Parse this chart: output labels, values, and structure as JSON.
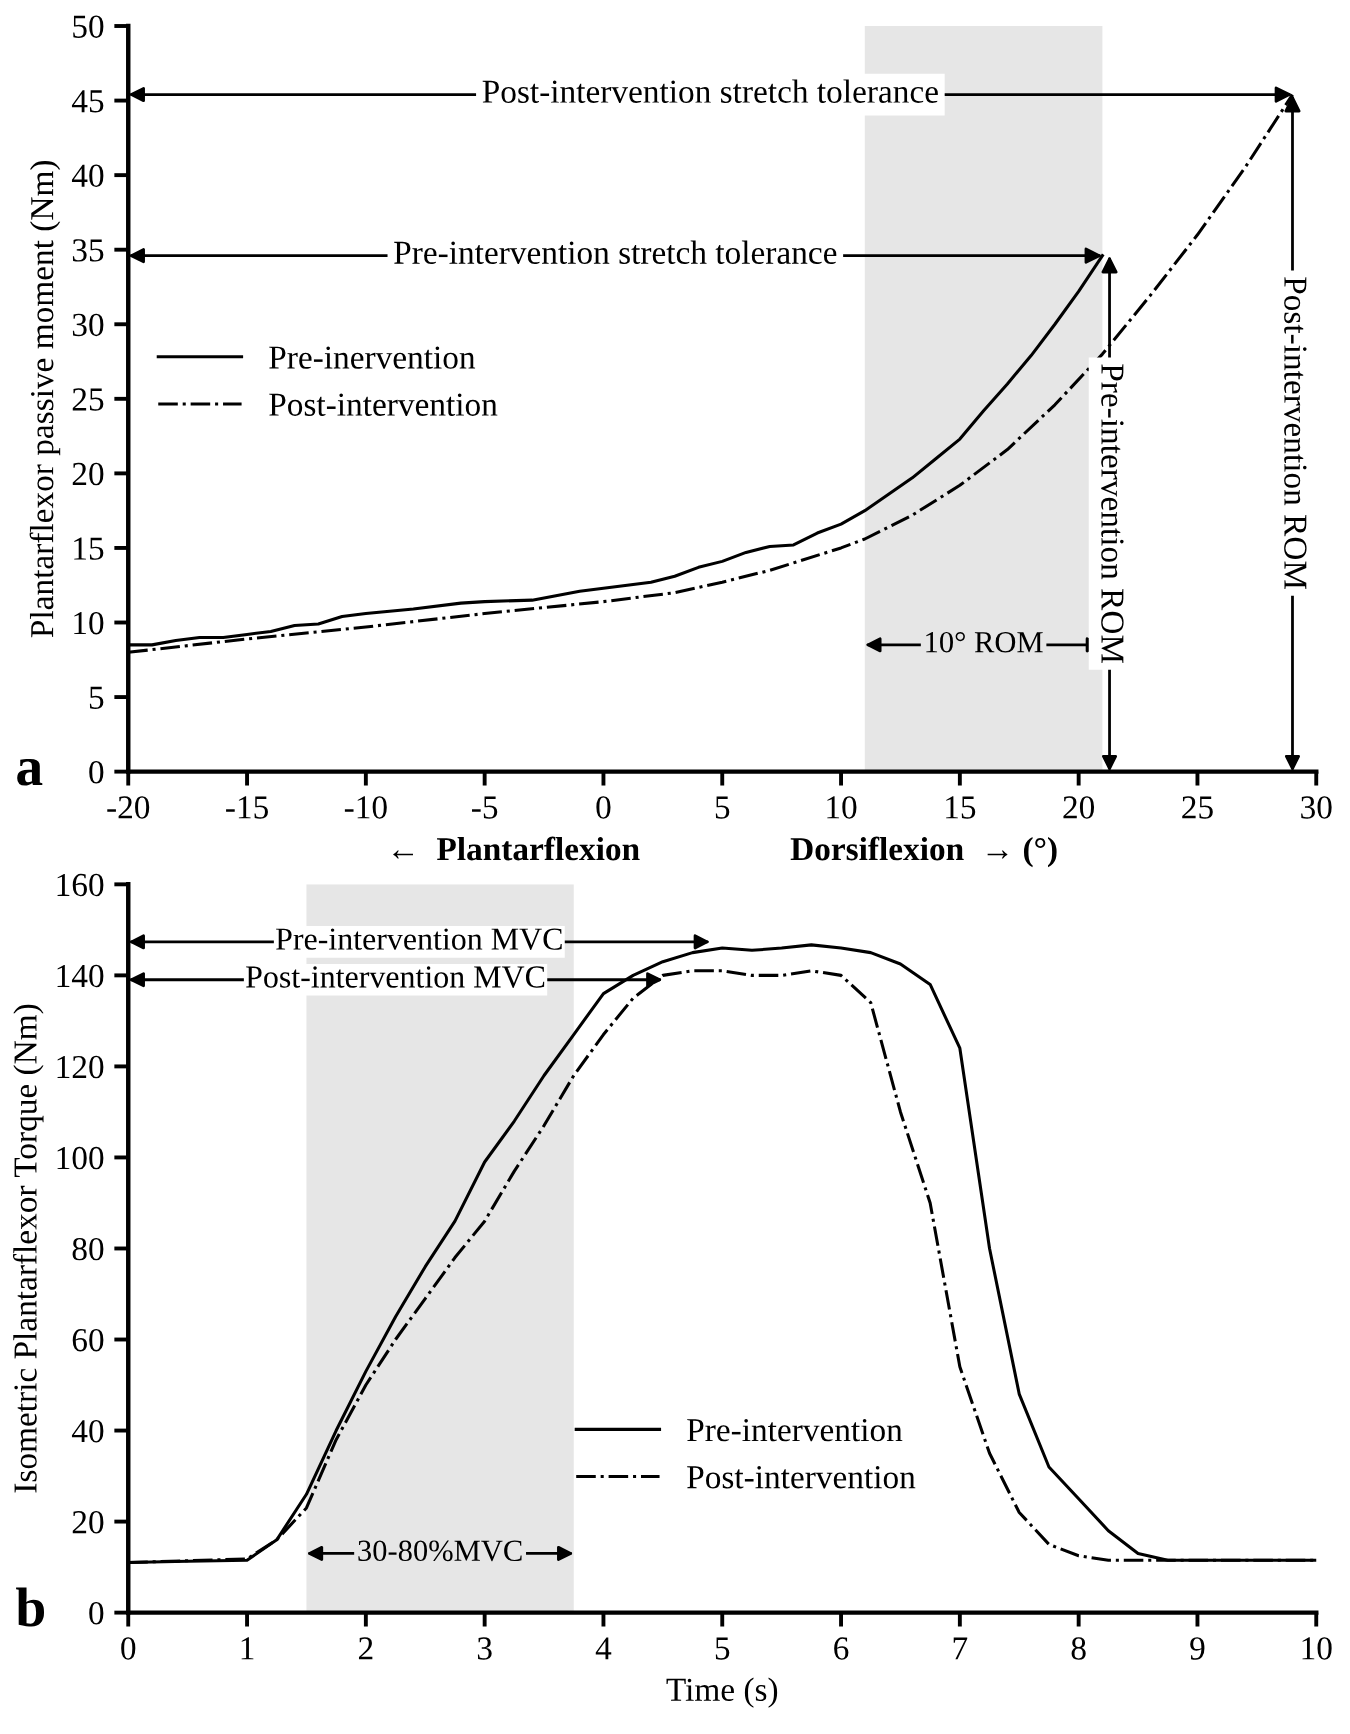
{
  "chart_data": [
    {
      "type": "line",
      "xlabel": "←  Plantarflexion                  Dorsiflexion  → (°)",
      "ylabel": "Plantarflexor passive moment (Nm)",
      "xlim": [
        -20,
        30
      ],
      "xticks": [
        -20,
        -15,
        -10,
        -5,
        0,
        5,
        10,
        15,
        20,
        25,
        30
      ],
      "ylim": [
        0,
        50
      ],
      "yticks": [
        0,
        5,
        10,
        15,
        20,
        25,
        30,
        35,
        40,
        45,
        50
      ],
      "grid": false,
      "legend": "left",
      "marker": "none",
      "series": [
        {
          "name": "Pre-inervention",
          "color": "#000000",
          "line_style": "solid",
          "x": [
            -20,
            -19,
            -18,
            -17,
            -16,
            -15,
            -14,
            -13,
            -12,
            -11,
            -10,
            -8,
            -6,
            -5,
            -3,
            -2,
            -1,
            0,
            2,
            3,
            4,
            5,
            6,
            7,
            8,
            9,
            10,
            11,
            12,
            13,
            14,
            15,
            16,
            17,
            18,
            19,
            20,
            21
          ],
          "values": [
            8.5,
            8.5,
            8.8,
            9.0,
            9.0,
            9.2,
            9.4,
            9.8,
            9.9,
            10.4,
            10.6,
            10.9,
            11.3,
            11.4,
            11.5,
            11.8,
            12.1,
            12.3,
            12.7,
            13.1,
            13.7,
            14.1,
            14.7,
            15.1,
            15.2,
            16.0,
            16.6,
            17.5,
            18.6,
            19.7,
            21.0,
            22.3,
            24.2,
            26.0,
            27.9,
            30.0,
            32.2,
            34.6
          ]
        },
        {
          "name": "Post-intervention",
          "color": "#000000",
          "line_style": "dashdot",
          "x": [
            -20,
            -15,
            -10,
            -5,
            0,
            3,
            5,
            7,
            8,
            10,
            11,
            13,
            15,
            17,
            19,
            21,
            23,
            25,
            27,
            29
          ],
          "values": [
            8.0,
            8.9,
            9.7,
            10.6,
            11.4,
            12.0,
            12.7,
            13.5,
            14.0,
            15.0,
            15.6,
            17.2,
            19.2,
            21.6,
            24.6,
            28.0,
            31.9,
            36.0,
            40.5,
            45.4
          ]
        }
      ],
      "bands": [
        {
          "axis": "x",
          "from": 11,
          "to": 21,
          "label": "10° ROM",
          "color": "#e6e6e6"
        }
      ],
      "annotations": [
        {
          "text": "Post-intervention stretch tolerance",
          "x": 29,
          "y": 45.4
        },
        {
          "text": "Pre-intervention stretch tolerance",
          "x": 21,
          "y": 34.6
        },
        {
          "text": "Pre-intervention ROM",
          "x": 21.3,
          "y": 34.6
        },
        {
          "text": "Post-intervention ROM",
          "x": 29,
          "y": 45.4
        },
        "a"
      ]
    },
    {
      "type": "line",
      "xlabel": "Time (s)",
      "ylabel": "Isometric Plantarflexor Torque (Nm)",
      "xlim": [
        0,
        10
      ],
      "xticks": [
        0,
        1,
        2,
        3,
        4,
        5,
        6,
        7,
        8,
        9,
        10
      ],
      "ylim": [
        0,
        160
      ],
      "yticks": [
        0,
        20,
        40,
        60,
        80,
        100,
        120,
        140,
        160
      ],
      "grid": false,
      "legend": "bottom",
      "marker": "none",
      "series": [
        {
          "name": "Pre-intervention",
          "color": "#000000",
          "line_style": "solid",
          "x": [
            0,
            0.5,
            1,
            1.25,
            1.5,
            1.75,
            2,
            2.25,
            2.5,
            2.75,
            3,
            3.25,
            3.5,
            3.75,
            4,
            4.25,
            4.5,
            4.75,
            5,
            5.25,
            5.5,
            5.75,
            6,
            6.25,
            6.5,
            6.75,
            7,
            7.25,
            7.5,
            7.75,
            8,
            8.25,
            8.5,
            8.75,
            9,
            10
          ],
          "values": [
            11,
            11.3,
            11.5,
            16,
            26,
            40,
            53,
            65,
            76,
            86,
            99,
            108,
            118,
            127,
            136,
            140,
            143,
            145,
            146,
            145.5,
            146,
            146.7,
            146,
            145,
            142.5,
            138,
            124,
            80,
            48,
            32,
            25,
            18,
            13,
            11.5,
            11.5,
            11.5
          ]
        },
        {
          "name": "Post-intervention",
          "color": "#000000",
          "line_style": "dashdot",
          "x": [
            0,
            1,
            1.25,
            1.5,
            1.75,
            2,
            2.25,
            2.5,
            2.75,
            3,
            3.25,
            3.5,
            3.75,
            4,
            4.25,
            4.5,
            4.75,
            5,
            5.25,
            5.5,
            5.75,
            6,
            6.25,
            6.5,
            6.75,
            7,
            7.25,
            7.5,
            7.75,
            8,
            8.25,
            8.5,
            10
          ],
          "values": [
            11,
            11.8,
            16,
            23,
            38,
            50,
            60,
            69,
            78,
            86,
            97,
            107,
            118,
            127,
            135,
            140,
            141,
            141,
            140,
            140,
            141,
            140,
            134,
            110,
            90,
            54,
            35,
            22,
            15,
            12.5,
            11.5,
            11.5,
            11.5
          ]
        }
      ],
      "bands": [
        {
          "axis": "x",
          "from": 1.5,
          "to": 3.75,
          "label": "30-80%MVC",
          "color": "#e6e6e6"
        }
      ],
      "annotations": [
        "Pre-intervention MVC",
        "Post-intervention MVC",
        "b"
      ]
    }
  ]
}
